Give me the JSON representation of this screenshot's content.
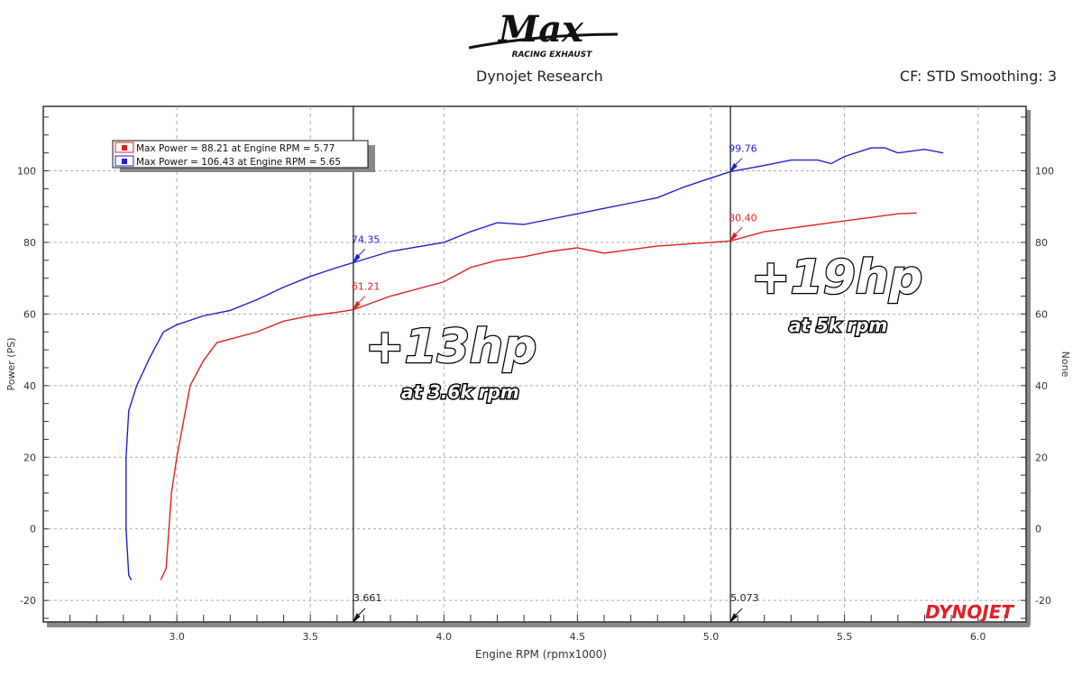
{
  "header": {
    "logo_text": "Max",
    "logo_subtext": "RACING EXHAUST",
    "subtitle": "Dynojet Research",
    "cf_text": "CF: STD Smoothing: 3",
    "brand_logo": "DYNOJET"
  },
  "chart_data": {
    "type": "line",
    "xlabel": "Engine RPM (rpmx1000)",
    "ylabel": "Power (PS)",
    "y2label": "None",
    "xlim": [
      2.5,
      6.18
    ],
    "ylim": [
      -26,
      118
    ],
    "xticks": [
      "3.0",
      "3.5",
      "4.0",
      "4.5",
      "5.0",
      "5.5",
      "6.0"
    ],
    "yticks": [
      "-20",
      "0",
      "20",
      "40",
      "60",
      "80",
      "100"
    ],
    "grid": true,
    "legend_position": "top-left",
    "legend": [
      "Max Power = 88.21 at Engine RPM = 5.77",
      "Max Power = 106.43 at Engine RPM = 5.65"
    ],
    "series": [
      {
        "color": "#e02020",
        "x": [
          2.94,
          2.96,
          2.98,
          3.0,
          3.05,
          3.1,
          3.15,
          3.2,
          3.3,
          3.4,
          3.5,
          3.6,
          3.661,
          3.8,
          4.0,
          4.1,
          4.2,
          4.3,
          4.4,
          4.5,
          4.6,
          4.7,
          4.8,
          5.0,
          5.073,
          5.2,
          5.3,
          5.4,
          5.5,
          5.6,
          5.7,
          5.77
        ],
        "y": [
          -14.3,
          -11,
          10,
          20,
          40,
          47,
          52,
          53,
          55,
          58,
          59.5,
          60.5,
          61.21,
          65,
          69,
          73,
          75,
          76,
          77.5,
          78.5,
          77,
          78,
          79,
          80,
          80.4,
          83,
          84,
          85,
          86,
          87,
          88,
          88.21
        ]
      },
      {
        "color": "#2020d0",
        "x": [
          2.83,
          2.82,
          2.81,
          2.81,
          2.82,
          2.85,
          2.9,
          2.95,
          3.0,
          3.1,
          3.2,
          3.3,
          3.4,
          3.5,
          3.6,
          3.661,
          3.8,
          4.0,
          4.1,
          4.2,
          4.3,
          4.4,
          4.5,
          4.6,
          4.7,
          4.8,
          4.9,
          5.0,
          5.073,
          5.2,
          5.3,
          5.4,
          5.45,
          5.5,
          5.6,
          5.65,
          5.7,
          5.8,
          5.87
        ],
        "y": [
          -14.3,
          -13,
          0,
          20,
          33,
          40,
          48,
          55,
          57,
          59.5,
          61,
          64,
          67.5,
          70.5,
          73,
          74.35,
          77.5,
          80,
          83,
          85.5,
          85,
          86.5,
          88,
          89.5,
          91,
          92.5,
          95.5,
          98,
          99.76,
          101.5,
          103,
          103,
          102,
          104,
          106.4,
          106.43,
          105,
          106,
          105
        ]
      }
    ],
    "cursors": [
      {
        "x": 3.661,
        "label": "3.661",
        "red_value": "61.21",
        "blue_value": "74.35",
        "red_y": 61.21,
        "blue_y": 74.35
      },
      {
        "x": 5.073,
        "label": "5.073",
        "red_value": "80.40",
        "blue_value": "99.76",
        "red_y": 80.4,
        "blue_y": 99.76
      }
    ],
    "annotations": [
      {
        "big": "+13hp",
        "small": "at 3.6k rpm"
      },
      {
        "big": "+19hp",
        "small": "at 5k rpm"
      }
    ]
  }
}
